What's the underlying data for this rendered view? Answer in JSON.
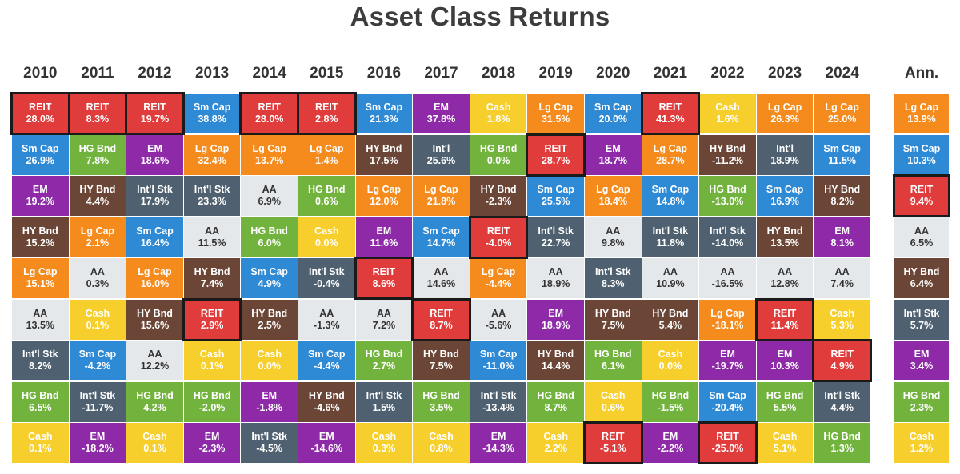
{
  "chart_data": {
    "type": "table",
    "title": "Asset Class Returns",
    "columns": [
      "2010",
      "2011",
      "2012",
      "2013",
      "2014",
      "2015",
      "2016",
      "2017",
      "2018",
      "2019",
      "2020",
      "2021",
      "2022",
      "2023",
      "2024",
      "Ann."
    ],
    "highlight": "REIT",
    "colors": {
      "REIT": "#e03c3c",
      "Sm Cap": "#2f8ad6",
      "EM": "#8e2aa8",
      "Cash": "#f7cf2d",
      "Lg Cap": "#f58b1c",
      "HG Bnd": "#72b33e",
      "HY Bnd": "#6b4536",
      "Int'l Stk": "#4f6170",
      "AA": "#e5e8eb",
      "Int'l": "#4f6170"
    },
    "grid": [
      [
        {
          "cls": "REIT",
          "val": "28.0%"
        },
        {
          "cls": "Sm Cap",
          "val": "26.9%"
        },
        {
          "cls": "EM",
          "val": "19.2%"
        },
        {
          "cls": "HY Bnd",
          "val": "15.2%"
        },
        {
          "cls": "Lg Cap",
          "val": "15.1%"
        },
        {
          "cls": "AA",
          "val": "13.5%"
        },
        {
          "cls": "Int'l Stk",
          "val": "8.2%"
        },
        {
          "cls": "HG Bnd",
          "val": "6.5%"
        },
        {
          "cls": "Cash",
          "val": "0.1%"
        }
      ],
      [
        {
          "cls": "REIT",
          "val": "8.3%"
        },
        {
          "cls": "HG Bnd",
          "val": "7.8%"
        },
        {
          "cls": "HY Bnd",
          "val": "4.4%"
        },
        {
          "cls": "Lg Cap",
          "val": "2.1%"
        },
        {
          "cls": "AA",
          "val": "0.3%"
        },
        {
          "cls": "Cash",
          "val": "0.1%"
        },
        {
          "cls": "Sm Cap",
          "val": "-4.2%"
        },
        {
          "cls": "Int'l Stk",
          "val": "-11.7%"
        },
        {
          "cls": "EM",
          "val": "-18.2%"
        }
      ],
      [
        {
          "cls": "REIT",
          "val": "19.7%"
        },
        {
          "cls": "EM",
          "val": "18.6%"
        },
        {
          "cls": "Int'l Stk",
          "val": "17.9%"
        },
        {
          "cls": "Sm Cap",
          "val": "16.4%"
        },
        {
          "cls": "Lg Cap",
          "val": "16.0%"
        },
        {
          "cls": "HY Bnd",
          "val": "15.6%"
        },
        {
          "cls": "AA",
          "val": "12.2%"
        },
        {
          "cls": "HG Bnd",
          "val": "4.2%"
        },
        {
          "cls": "Cash",
          "val": "0.1%"
        }
      ],
      [
        {
          "cls": "Sm Cap",
          "val": "38.8%"
        },
        {
          "cls": "Lg Cap",
          "val": "32.4%"
        },
        {
          "cls": "Int'l Stk",
          "val": "23.3%"
        },
        {
          "cls": "AA",
          "val": "11.5%"
        },
        {
          "cls": "HY Bnd",
          "val": "7.4%"
        },
        {
          "cls": "REIT",
          "val": "2.9%"
        },
        {
          "cls": "Cash",
          "val": "0.1%"
        },
        {
          "cls": "HG Bnd",
          "val": "-2.0%"
        },
        {
          "cls": "EM",
          "val": "-2.3%"
        }
      ],
      [
        {
          "cls": "REIT",
          "val": "28.0%"
        },
        {
          "cls": "Lg Cap",
          "val": "13.7%"
        },
        {
          "cls": "AA",
          "val": "6.9%"
        },
        {
          "cls": "HG Bnd",
          "val": "6.0%"
        },
        {
          "cls": "Sm Cap",
          "val": "4.9%"
        },
        {
          "cls": "HY Bnd",
          "val": "2.5%"
        },
        {
          "cls": "Cash",
          "val": "0.0%"
        },
        {
          "cls": "EM",
          "val": "-1.8%"
        },
        {
          "cls": "Int'l Stk",
          "val": "-4.5%"
        }
      ],
      [
        {
          "cls": "REIT",
          "val": "2.8%"
        },
        {
          "cls": "Lg Cap",
          "val": "1.4%"
        },
        {
          "cls": "HG Bnd",
          "val": "0.6%"
        },
        {
          "cls": "Cash",
          "val": "0.0%"
        },
        {
          "cls": "Int'l Stk",
          "val": "-0.4%"
        },
        {
          "cls": "AA",
          "val": "-1.3%"
        },
        {
          "cls": "Sm Cap",
          "val": "-4.4%"
        },
        {
          "cls": "HY Bnd",
          "val": "-4.6%"
        },
        {
          "cls": "EM",
          "val": "-14.6%"
        }
      ],
      [
        {
          "cls": "Sm Cap",
          "val": "21.3%"
        },
        {
          "cls": "HY Bnd",
          "val": "17.5%"
        },
        {
          "cls": "Lg Cap",
          "val": "12.0%"
        },
        {
          "cls": "EM",
          "val": "11.6%"
        },
        {
          "cls": "REIT",
          "val": "8.6%"
        },
        {
          "cls": "AA",
          "val": "7.2%"
        },
        {
          "cls": "HG Bnd",
          "val": "2.7%"
        },
        {
          "cls": "Int'l Stk",
          "val": "1.5%"
        },
        {
          "cls": "Cash",
          "val": "0.3%"
        }
      ],
      [
        {
          "cls": "EM",
          "val": "37.8%"
        },
        {
          "cls": "Int'l",
          "val": "25.6%"
        },
        {
          "cls": "Lg Cap",
          "val": "21.8%"
        },
        {
          "cls": "Sm Cap",
          "val": "14.7%"
        },
        {
          "cls": "AA",
          "val": "14.6%"
        },
        {
          "cls": "REIT",
          "val": "8.7%"
        },
        {
          "cls": "HY Bnd",
          "val": "7.5%"
        },
        {
          "cls": "HG Bnd",
          "val": "3.5%"
        },
        {
          "cls": "Cash",
          "val": "0.8%"
        }
      ],
      [
        {
          "cls": "Cash",
          "val": "1.8%"
        },
        {
          "cls": "HG Bnd",
          "val": "0.0%"
        },
        {
          "cls": "HY Bnd",
          "val": "-2.3%"
        },
        {
          "cls": "REIT",
          "val": "-4.0%"
        },
        {
          "cls": "Lg Cap",
          "val": "-4.4%"
        },
        {
          "cls": "AA",
          "val": "-5.6%"
        },
        {
          "cls": "Sm Cap",
          "val": "-11.0%"
        },
        {
          "cls": "Int'l Stk",
          "val": "-13.4%"
        },
        {
          "cls": "EM",
          "val": "-14.3%"
        }
      ],
      [
        {
          "cls": "Lg Cap",
          "val": "31.5%"
        },
        {
          "cls": "REIT",
          "val": "28.7%"
        },
        {
          "cls": "Sm Cap",
          "val": "25.5%"
        },
        {
          "cls": "Int'l Stk",
          "val": "22.7%"
        },
        {
          "cls": "AA",
          "val": "18.9%"
        },
        {
          "cls": "EM",
          "val": "18.9%"
        },
        {
          "cls": "HY Bnd",
          "val": "14.4%"
        },
        {
          "cls": "HG Bnd",
          "val": "8.7%"
        },
        {
          "cls": "Cash",
          "val": "2.2%"
        }
      ],
      [
        {
          "cls": "Sm Cap",
          "val": "20.0%"
        },
        {
          "cls": "EM",
          "val": "18.7%"
        },
        {
          "cls": "Lg Cap",
          "val": "18.4%"
        },
        {
          "cls": "AA",
          "val": "9.8%"
        },
        {
          "cls": "Int'l Stk",
          "val": "8.3%"
        },
        {
          "cls": "HY Bnd",
          "val": "7.5%"
        },
        {
          "cls": "HG Bnd",
          "val": "6.1%"
        },
        {
          "cls": "Cash",
          "val": "0.6%"
        },
        {
          "cls": "REIT",
          "val": "-5.1%"
        }
      ],
      [
        {
          "cls": "REIT",
          "val": "41.3%"
        },
        {
          "cls": "Lg Cap",
          "val": "28.7%"
        },
        {
          "cls": "Sm Cap",
          "val": "14.8%"
        },
        {
          "cls": "Int'l Stk",
          "val": "11.8%"
        },
        {
          "cls": "AA",
          "val": "10.9%"
        },
        {
          "cls": "HY Bnd",
          "val": "5.4%"
        },
        {
          "cls": "Cash",
          "val": "0.0%"
        },
        {
          "cls": "HG Bnd",
          "val": "-1.5%"
        },
        {
          "cls": "EM",
          "val": "-2.2%"
        }
      ],
      [
        {
          "cls": "Cash",
          "val": "1.6%"
        },
        {
          "cls": "HY Bnd",
          "val": "-11.2%"
        },
        {
          "cls": "HG Bnd",
          "val": "-13.0%"
        },
        {
          "cls": "Int'l Stk",
          "val": "-14.0%"
        },
        {
          "cls": "AA",
          "val": "-16.5%"
        },
        {
          "cls": "Lg Cap",
          "val": "-18.1%"
        },
        {
          "cls": "EM",
          "val": "-19.7%"
        },
        {
          "cls": "Sm Cap",
          "val": "-20.4%"
        },
        {
          "cls": "REIT",
          "val": "-25.0%"
        }
      ],
      [
        {
          "cls": "Lg Cap",
          "val": "26.3%"
        },
        {
          "cls": "Int'l",
          "val": "18.9%"
        },
        {
          "cls": "Sm Cap",
          "val": "16.9%"
        },
        {
          "cls": "HY Bnd",
          "val": "13.5%"
        },
        {
          "cls": "AA",
          "val": "12.8%"
        },
        {
          "cls": "REIT",
          "val": "11.4%"
        },
        {
          "cls": "EM",
          "val": "10.3%"
        },
        {
          "cls": "HG Bnd",
          "val": "5.5%"
        },
        {
          "cls": "Cash",
          "val": "5.1%"
        }
      ],
      [
        {
          "cls": "Lg Cap",
          "val": "25.0%"
        },
        {
          "cls": "Sm Cap",
          "val": "11.5%"
        },
        {
          "cls": "HY Bnd",
          "val": "8.2%"
        },
        {
          "cls": "EM",
          "val": "8.1%"
        },
        {
          "cls": "AA",
          "val": "7.4%"
        },
        {
          "cls": "Cash",
          "val": "5.3%"
        },
        {
          "cls": "REIT",
          "val": "4.9%"
        },
        {
          "cls": "Int'l Stk",
          "val": "4.4%"
        },
        {
          "cls": "HG Bnd",
          "val": "1.3%"
        }
      ],
      [
        {
          "cls": "Lg Cap",
          "val": "13.9%"
        },
        {
          "cls": "Sm Cap",
          "val": "10.3%"
        },
        {
          "cls": "REIT",
          "val": "9.4%"
        },
        {
          "cls": "AA",
          "val": "6.5%"
        },
        {
          "cls": "HY Bnd",
          "val": "6.4%"
        },
        {
          "cls": "Int'l Stk",
          "val": "5.7%"
        },
        {
          "cls": "EM",
          "val": "3.4%"
        },
        {
          "cls": "HG Bnd",
          "val": "2.3%"
        },
        {
          "cls": "Cash",
          "val": "1.2%"
        }
      ]
    ]
  }
}
